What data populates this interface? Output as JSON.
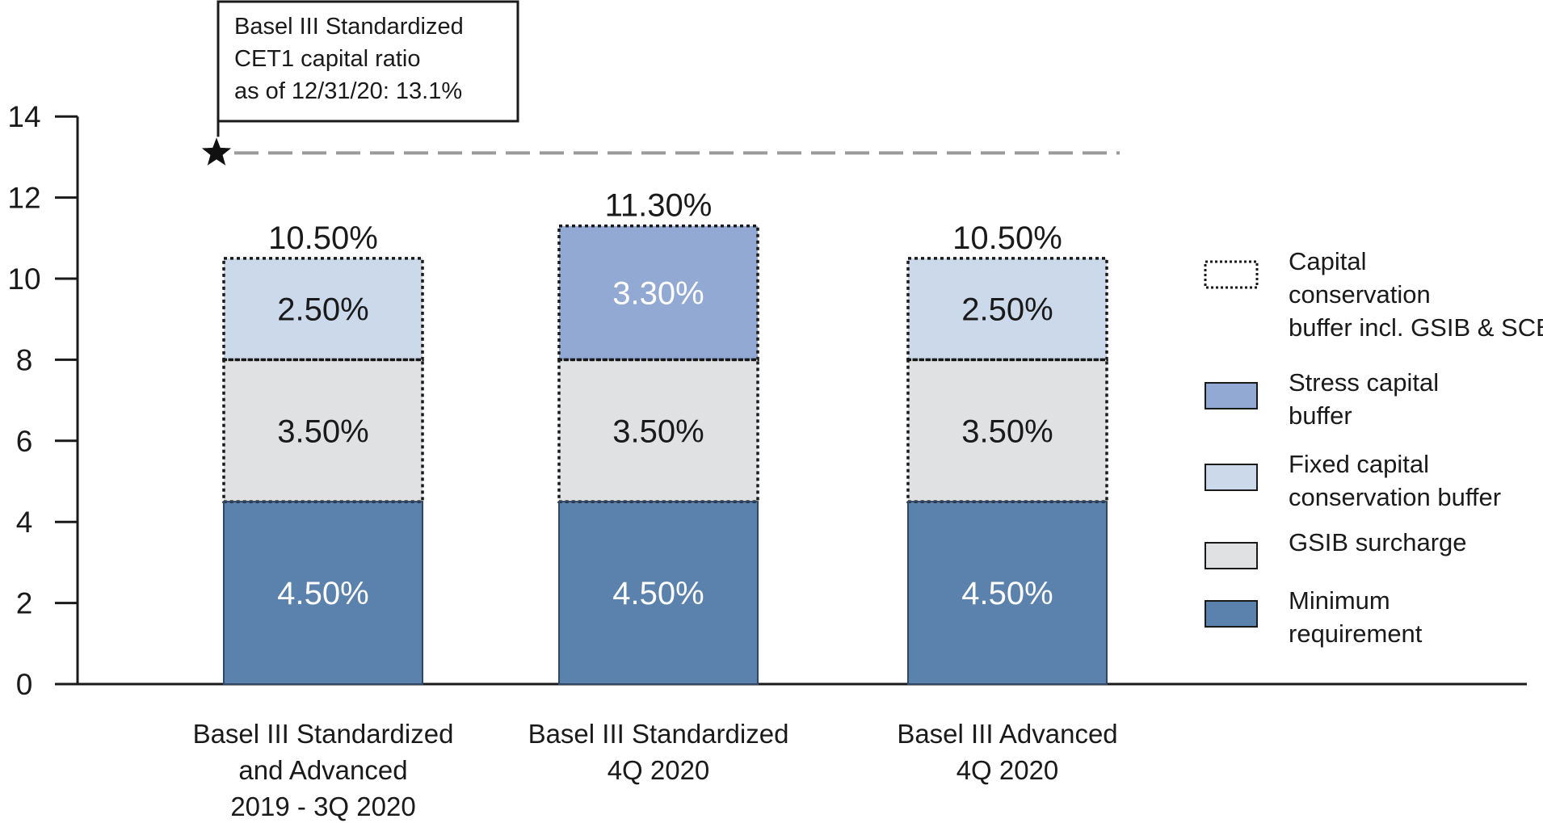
{
  "chart_data": {
    "type": "bar",
    "stacked": true,
    "categories": [
      [
        "Basel III Standardized",
        "and Advanced",
        "2019 - 3Q 2020"
      ],
      [
        "Basel III Standardized",
        "4Q 2020"
      ],
      [
        "Basel III Advanced",
        "4Q 2020"
      ]
    ],
    "series": [
      {
        "name": "Minimum requirement",
        "key": "minimum",
        "color": "#5a82ad",
        "values": [
          4.5,
          4.5,
          4.5
        ],
        "labels": [
          "4.50%",
          "4.50%",
          "4.50%"
        ],
        "label_color": "#ffffff"
      },
      {
        "name": "GSIB surcharge",
        "key": "gsib",
        "color": "#e0e1e3",
        "values": [
          3.5,
          3.5,
          3.5
        ],
        "labels": [
          "3.50%",
          "3.50%",
          "3.50%"
        ],
        "label_color": "#1a1a1a"
      },
      {
        "name": "Fixed capital conservation buffer",
        "key": "fixed_ccb",
        "color": "#ccd9ea",
        "values": [
          2.5,
          null,
          2.5
        ],
        "labels": [
          "2.50%",
          "",
          "2.50%"
        ],
        "label_color": "#1a1a1a"
      },
      {
        "name": "Stress capital buffer",
        "key": "scb",
        "color": "#92a9d3",
        "values": [
          null,
          3.3,
          null
        ],
        "labels": [
          "",
          "3.30%",
          ""
        ],
        "label_color": "#ffffff"
      }
    ],
    "totals": [
      "10.50%",
      "11.30%",
      "10.50%"
    ],
    "ylim": [
      0,
      14
    ],
    "yticks": [
      "0",
      "2",
      "4",
      "6",
      "8",
      "10",
      "12",
      "14"
    ],
    "xlabel": "",
    "ylabel": "",
    "title": "",
    "reference_line": {
      "value": 13.1,
      "annotation": [
        "Basel III Standardized",
        "CET1 capital ratio",
        "as of 12/31/20: 13.1%"
      ]
    },
    "legend": {
      "placement": "right",
      "items": [
        {
          "key": "ccb_incl",
          "style": "dotted",
          "lines": [
            "Capital",
            "conservation",
            "buffer incl. GSIB & SCB"
          ]
        },
        {
          "key": "scb",
          "color": "#92a9d3",
          "lines": [
            "Stress capital",
            "buffer"
          ]
        },
        {
          "key": "fixed_ccb",
          "color": "#ccd9ea",
          "lines": [
            "Fixed capital",
            "conservation buffer"
          ]
        },
        {
          "key": "gsib",
          "color": "#e0e1e3",
          "lines": [
            "GSIB surcharge"
          ]
        },
        {
          "key": "minimum",
          "color": "#5a82ad",
          "lines": [
            "Minimum",
            "requirement"
          ]
        }
      ]
    },
    "grid": false
  }
}
